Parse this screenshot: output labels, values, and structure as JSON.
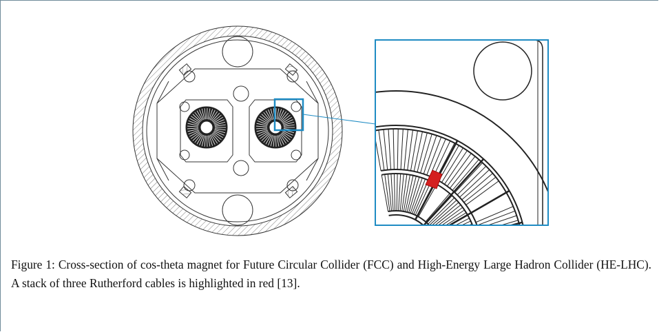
{
  "figure": {
    "caption": "Figure 1: Cross-section of cos-theta magnet for Future Circular Collider (FCC) and High-Energy Large Hadron Collider (HE-LHC). A stack of three Rutherford cables is highlighted in red [13]."
  }
}
